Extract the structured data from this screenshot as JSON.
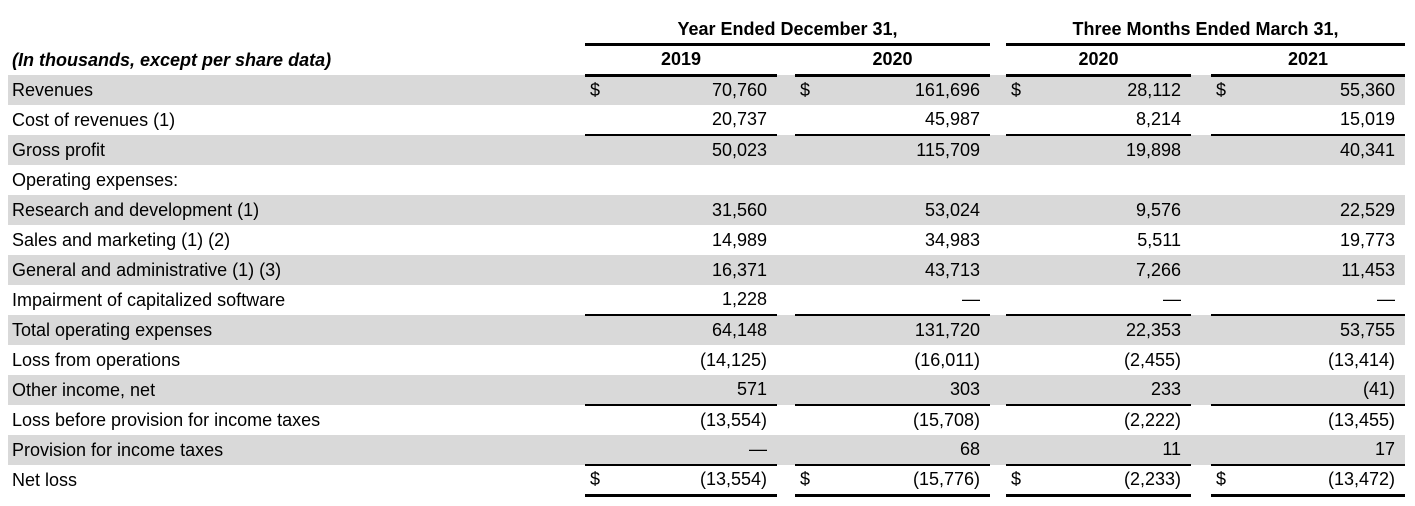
{
  "table": {
    "unit_caption": "(In thousands, except per share data)",
    "currency_symbol": "$",
    "column_groups": [
      {
        "label": "Year Ended December 31,",
        "columns": [
          "2019",
          "2020"
        ]
      },
      {
        "label": "Three Months Ended March 31,",
        "columns": [
          "2020",
          "2021"
        ]
      }
    ],
    "rows": [
      {
        "label": "Revenues",
        "values": [
          "70,760",
          "161,696",
          "28,112",
          "55,360"
        ]
      },
      {
        "label": "Cost of revenues (1)",
        "values": [
          "20,737",
          "45,987",
          "8,214",
          "15,019"
        ]
      },
      {
        "label": "Gross profit",
        "values": [
          "50,023",
          "115,709",
          "19,898",
          "40,341"
        ]
      },
      {
        "label": "Operating expenses:",
        "values": [
          "",
          "",
          "",
          ""
        ]
      },
      {
        "label": "Research and development (1)",
        "values": [
          "31,560",
          "53,024",
          "9,576",
          "22,529"
        ]
      },
      {
        "label": "Sales and marketing (1) (2)",
        "values": [
          "14,989",
          "34,983",
          "5,511",
          "19,773"
        ]
      },
      {
        "label": "General and administrative (1) (3)",
        "values": [
          "16,371",
          "43,713",
          "7,266",
          "11,453"
        ]
      },
      {
        "label": "Impairment of capitalized software",
        "values": [
          "1,228",
          "—",
          "—",
          "—"
        ]
      },
      {
        "label": "Total operating expenses",
        "values": [
          "64,148",
          "131,720",
          "22,353",
          "53,755"
        ]
      },
      {
        "label": "Loss from operations",
        "values": [
          "(14,125)",
          "(16,011)",
          "(2,455)",
          "(13,414)"
        ]
      },
      {
        "label": "Other income, net",
        "values": [
          "571",
          "303",
          "233",
          "(41)"
        ]
      },
      {
        "label": "Loss before provision for income taxes",
        "values": [
          "(13,554)",
          "(15,708)",
          "(2,222)",
          "(13,455)"
        ]
      },
      {
        "label": "Provision for income taxes",
        "values": [
          "—",
          "68",
          "11",
          "17"
        ]
      },
      {
        "label": "Net loss",
        "values": [
          "(13,554)",
          "(15,776)",
          "(2,233)",
          "(13,472)"
        ]
      }
    ]
  }
}
